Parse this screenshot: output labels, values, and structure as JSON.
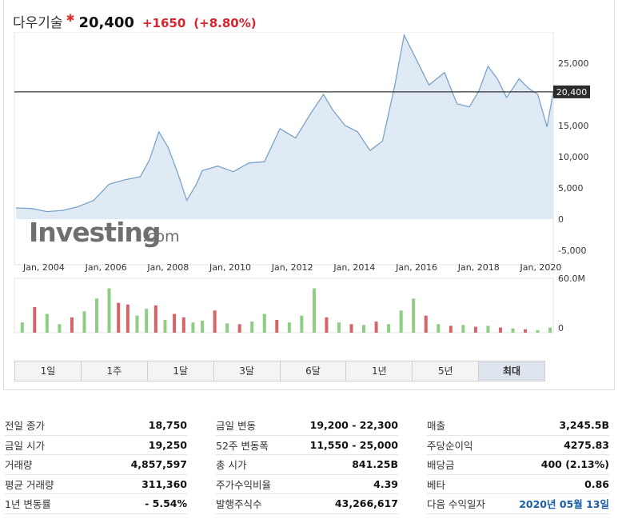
{
  "quote": {
    "name": "다우기술",
    "price": "20,400",
    "change": "+1650",
    "change_pct": "(+8.80%)",
    "current_line_label": "20,400",
    "colors": {
      "up": "#d9232d",
      "line": "#7aa3c9",
      "fill": "#dfeaf5",
      "vol_up": "#8fcc86",
      "vol_down": "#d4646a"
    }
  },
  "chart": {
    "watermark": "Investing",
    "watermark_suffix": ".com",
    "y_ticks": [
      "25,000",
      "20,000",
      "15,000",
      "10,000",
      "5,000",
      "0",
      "-5,000"
    ],
    "x_ticks": [
      "Jan, 2004",
      "Jan, 2006",
      "Jan, 2008",
      "Jan, 2010",
      "Jan, 2012",
      "Jan, 2014",
      "Jan, 2016",
      "Jan, 2018",
      "Jan, 2020"
    ],
    "volume_ticks": [
      "60.0M",
      "0"
    ]
  },
  "chart_data": {
    "type": "area",
    "x_label": "",
    "y_label": "",
    "ylim": [
      -5000,
      30000
    ],
    "current_value": 20400,
    "series": [
      {
        "x": [
          2003.0,
          2003.5,
          2004.0,
          2004.5,
          2005.0,
          2005.5,
          2006.0,
          2006.5,
          2007.0,
          2007.3,
          2007.6,
          2007.9,
          2008.2,
          2008.5,
          2008.8,
          2009.0,
          2009.5,
          2010.0,
          2010.5,
          2011.0,
          2011.5,
          2012.0,
          2012.5,
          2012.9,
          2013.2,
          2013.6,
          2014.0,
          2014.4,
          2014.8,
          2015.2,
          2015.5,
          2015.9,
          2016.3,
          2016.8,
          2017.2,
          2017.6,
          2017.9,
          2018.2,
          2018.5,
          2018.8,
          2019.2,
          2019.5,
          2019.8,
          2020.1,
          2020.3
        ],
        "values": [
          1800,
          1700,
          1200,
          1400,
          2000,
          3000,
          5600,
          6300,
          6800,
          9500,
          14000,
          11500,
          7500,
          3000,
          5500,
          7800,
          8500,
          7600,
          9000,
          9200,
          14500,
          13000,
          17000,
          20000,
          17500,
          15000,
          14000,
          11000,
          12500,
          21500,
          29500,
          25500,
          21500,
          23500,
          18500,
          18000,
          20500,
          24500,
          22500,
          19500,
          22500,
          21000,
          20000,
          14800,
          20400
        ]
      }
    ],
    "volume": {
      "x": [
        2003.2,
        2003.6,
        2004.0,
        2004.4,
        2004.8,
        2005.2,
        2005.6,
        2006.0,
        2006.3,
        2006.6,
        2006.9,
        2007.2,
        2007.5,
        2007.8,
        2008.1,
        2008.4,
        2008.7,
        2009.0,
        2009.4,
        2009.8,
        2010.2,
        2010.6,
        2011.0,
        2011.4,
        2011.8,
        2012.2,
        2012.6,
        2013.0,
        2013.4,
        2013.8,
        2014.2,
        2014.6,
        2015.0,
        2015.4,
        2015.8,
        2016.2,
        2016.6,
        2017.0,
        2017.4,
        2017.8,
        2018.2,
        2018.6,
        2019.0,
        2019.4,
        2019.8,
        2020.2
      ],
      "values": [
        12,
        30,
        22,
        10,
        18,
        25,
        40,
        52,
        35,
        33,
        20,
        28,
        32,
        15,
        22,
        18,
        12,
        14,
        26,
        11,
        10,
        13,
        22,
        15,
        12,
        20,
        52,
        18,
        12,
        10,
        9,
        13,
        10,
        26,
        40,
        20,
        10,
        8,
        9,
        7,
        8,
        6,
        5,
        4,
        3,
        6
      ],
      "up": [
        true,
        false,
        true,
        true,
        false,
        true,
        true,
        true,
        false,
        false,
        true,
        true,
        false,
        true,
        false,
        false,
        true,
        true,
        false,
        true,
        false,
        true,
        true,
        false,
        true,
        true,
        true,
        false,
        true,
        false,
        true,
        false,
        true,
        true,
        true,
        false,
        true,
        false,
        true,
        false,
        true,
        false,
        true,
        false,
        true,
        true
      ]
    }
  },
  "tabs": [
    {
      "label": "1일",
      "active": false
    },
    {
      "label": "1주",
      "active": false
    },
    {
      "label": "1달",
      "active": false
    },
    {
      "label": "3달",
      "active": false
    },
    {
      "label": "6달",
      "active": false
    },
    {
      "label": "1년",
      "active": false
    },
    {
      "label": "5년",
      "active": false
    },
    {
      "label": "최대",
      "active": true
    }
  ],
  "stats": {
    "col1": [
      {
        "label": "전일 종가",
        "value": "18,750"
      },
      {
        "label": "금일 시가",
        "value": "19,250"
      },
      {
        "label": "거래량",
        "value": "4,857,597"
      },
      {
        "label": "평균 거래량",
        "value": "311,360"
      },
      {
        "label": "1년 변동률",
        "value": "- 5.54%"
      }
    ],
    "col2": [
      {
        "label": "금일 변동",
        "value": "19,200 - 22,300"
      },
      {
        "label": "52주 변동폭",
        "value": "11,550 - 25,000"
      },
      {
        "label": "총 시가",
        "value": "841.25B"
      },
      {
        "label": "주가수익비율",
        "value": "4.39"
      },
      {
        "label": "발행주식수",
        "value": "43,266,617"
      }
    ],
    "col3": [
      {
        "label": "매출",
        "value": "3,245.5B"
      },
      {
        "label": "주당순이익",
        "value": "4275.83"
      },
      {
        "label": "배당금",
        "value": "400 (2.13%)"
      },
      {
        "label": "베타",
        "value": "0.86"
      },
      {
        "label": "다음 수익일자",
        "value": "2020년 05월 13일"
      }
    ]
  }
}
